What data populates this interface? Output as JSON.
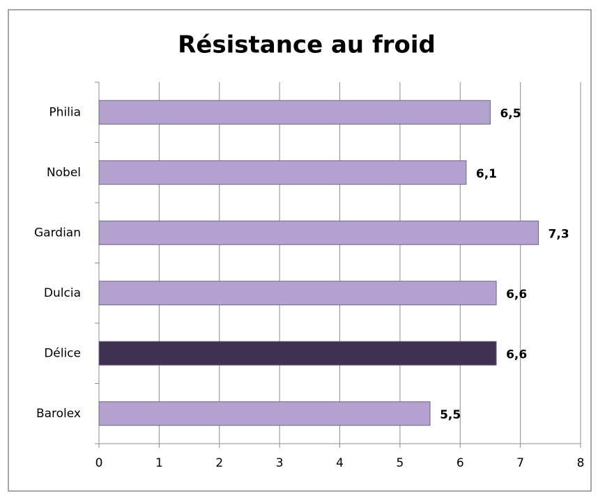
{
  "chart_data": {
    "type": "hbar",
    "title": "Résistance au froid",
    "categories": [
      "Philia",
      "Nobel",
      "Gardian",
      "Dulcia",
      "Délice",
      "Barolex"
    ],
    "values": [
      6.5,
      6.1,
      7.3,
      6.6,
      6.6,
      5.5
    ],
    "value_labels": [
      "6,5",
      "6,1",
      "7,3",
      "6,6",
      "6,6",
      "5,5"
    ],
    "colors": [
      "#b3a2d0",
      "#b3a2d0",
      "#b3a2d0",
      "#b3a2d0",
      "#3f3151",
      "#b3a2d0"
    ],
    "xlim": [
      0,
      8
    ],
    "xticks": [
      0,
      1,
      2,
      3,
      4,
      5,
      6,
      7,
      8
    ],
    "grid": true
  }
}
